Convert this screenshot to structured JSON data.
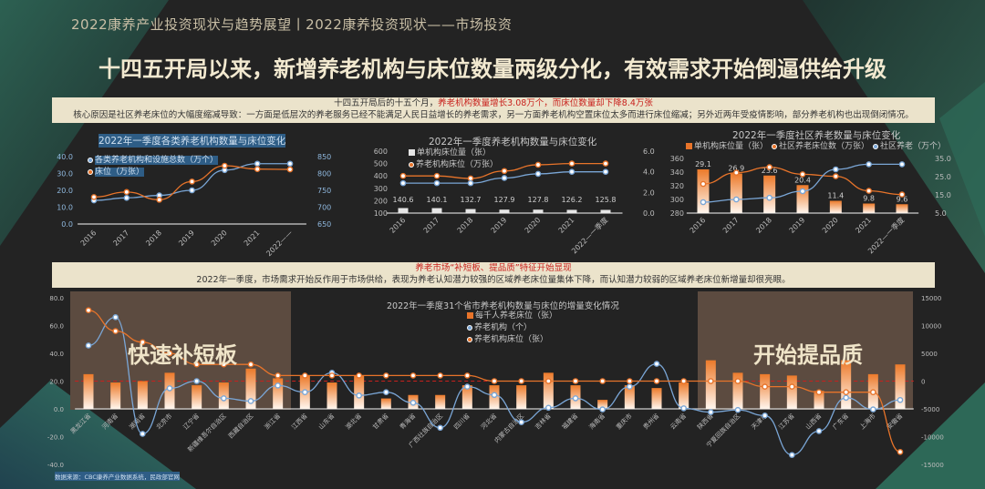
{
  "header": {
    "title": "2022康养产业投资现状与趋势展望丨2022康养投资现状——市场投资"
  },
  "headline": "十四五开局以来，新增养老机构与床位数量两级分化，有效需求开始倒逼供给升级",
  "box1": {
    "line1_prefix": "十四五开局后的十五个月，",
    "line1_highlight": "养老机构数量增长3.08万个，而床位数量却下降8.4万张",
    "line2": "核心原因是社区养老床位的大幅度缩减导致：一方面是低层次的养老服务已经不能满足人民日益增长的养老需求，另一方面养老机构空置床位太多而进行床位缩减；另外近两年受疫情影响，部分养老机构也出现倒闭情况。"
  },
  "box2": {
    "title": "养老市场“补短板、提品质”特征开始显现",
    "text": "2022年一季度，市场需求开始反作用于市场供给，表现为养老认知潜力较强的区域养老床位量集体下降，而认知潜力较弱的区域养老床位新增量却很亮眼。"
  },
  "callouts": {
    "left": "快速补短板",
    "right": "开始提品质"
  },
  "source": "数据来源：CBC康养产业数据系统，民政部官网",
  "colors": {
    "orange": "#e8742a",
    "blue": "#7aa6d6",
    "background": "#232323",
    "box": "#ebe3cb",
    "highlight_red": "#c8201c",
    "region": "#5c4b40"
  },
  "chart_data": [
    {
      "type": "line",
      "title": "2022年一季度各类养老机构数量与床位变化",
      "categories": [
        "2016",
        "2017",
        "2018",
        "2019",
        "2020",
        "2021",
        "2022——"
      ],
      "left_axis": {
        "range": [
          0,
          40
        ],
        "ticks": [
          "0.0",
          "10.0",
          "20.0",
          "30.0",
          "40.0"
        ]
      },
      "right_axis": {
        "range": [
          650,
          850
        ],
        "ticks": [
          "650",
          "700",
          "750",
          "800",
          "850"
        ]
      },
      "series": [
        {
          "name": "各类养老机构和设施总数（万个）",
          "type": "line",
          "axis": "left",
          "color": "#7aa6d6",
          "values": [
            14.0,
            15.5,
            17.0,
            20.0,
            32.0,
            35.8,
            35.8
          ]
        },
        {
          "name": "床位（万张）",
          "type": "line",
          "axis": "right",
          "color": "#e8742a",
          "values": [
            730,
            745,
            722,
            776,
            823,
            813,
            812
          ]
        }
      ],
      "grid": false,
      "legend": "top-left"
    },
    {
      "type": "bar+line",
      "title": "2022年一季度养老机构数量与床位变化",
      "categories": [
        "2016",
        "2017",
        "2018",
        "2019",
        "2020",
        "2021",
        "2022—一季度"
      ],
      "left_axis": {
        "range": [
          100,
          600
        ],
        "ticks": [
          "100",
          "200",
          "300",
          "400",
          "500",
          "600"
        ]
      },
      "right_axis": {
        "range": [
          0,
          6
        ],
        "ticks": [
          "0.0",
          "2.0",
          "4.0",
          "6.0"
        ]
      },
      "series": [
        {
          "name": "单机构床位量（张）",
          "type": "bar",
          "axis": "left",
          "color": "#e6e6e6",
          "values": [
            140.6,
            140.1,
            132.7,
            127.9,
            127.8,
            126.2,
            125.8
          ],
          "labels": [
            "140.6",
            "140.1",
            "132.7",
            "127.9",
            "127.8",
            "126.2",
            "125.8"
          ]
        },
        {
          "name": "养老机构床位（万张）",
          "type": "line",
          "axis": "left",
          "color": "#e8742a",
          "values": [
            400,
            400,
            380,
            440,
            490,
            500,
            500
          ]
        },
        {
          "type": "line",
          "axis": "right",
          "color": "#7aa6d6",
          "values": [
            2.9,
            2.9,
            2.9,
            3.4,
            3.8,
            4.0,
            4.0
          ]
        }
      ],
      "grid": false,
      "legend": "top-left"
    },
    {
      "type": "bar+line",
      "title": "2022年一季度社区养老数量与床位变化",
      "categories": [
        "2016",
        "2017",
        "2018",
        "2019",
        "2020",
        "2021",
        "2022—一季度"
      ],
      "left_axis": {
        "range": [
          280,
          360
        ],
        "ticks": [
          "280",
          "300",
          "320",
          "340",
          "360"
        ]
      },
      "right_axis": {
        "range": [
          5,
          35
        ],
        "ticks": [
          "5.0",
          "15.0",
          "25.0",
          "35.0"
        ]
      },
      "series": [
        {
          "name": "单机构床位量（张）",
          "type": "bar",
          "axis": "left",
          "color": "#e8742a",
          "values": [
            344,
            338,
            335,
            321,
            298,
            294,
            293
          ],
          "labels": [
            "29.1",
            "26.9",
            "23.6",
            "20.4",
            "11.4",
            "9.8",
            "9.6"
          ]
        },
        {
          "name": "社区养老床位数（万张）",
          "type": "line",
          "axis": "right",
          "color": "#e8742a",
          "values": [
            21.0,
            27.2,
            30.2,
            26.3,
            25.2,
            17.2,
            15.2
          ]
        },
        {
          "name": "社区养老（万个）",
          "type": "line",
          "axis": "right",
          "color": "#7aa6d6",
          "values": [
            11.0,
            12.5,
            13.4,
            17.0,
            29.0,
            31.8,
            31.8
          ]
        }
      ],
      "grid": false,
      "legend": "top"
    },
    {
      "type": "bar+line",
      "title": "2022年一季度31个省市养老机构数量与床位的增量变化情况",
      "categories": [
        "黑龙江省",
        "河南省",
        "湖南省",
        "北京市",
        "辽宁省",
        "新疆维吾尔自治区",
        "西藏自治区",
        "浙江省",
        "江西省",
        "山东省",
        "湖北省",
        "甘肃省",
        "青海省",
        "广西壮族自治区",
        "四川省",
        "河北省",
        "内蒙古自治区",
        "吉林省",
        "福建省",
        "海南省",
        "重庆市",
        "贵州省",
        "云南省",
        "陕西省",
        "宁夏回族自治区",
        "天津市",
        "江苏省",
        "山西省",
        "广东省",
        "上海市",
        "安徽省"
      ],
      "left_axis": {
        "range": [
          -40,
          80
        ],
        "ticks": [
          "-40.0",
          "-20.0",
          "0.0",
          "20.0",
          "40.0",
          "60.0",
          "80.0"
        ]
      },
      "right_axis": {
        "range": [
          -15000,
          15000
        ],
        "ticks": [
          "-15000",
          "-10000",
          "-5000",
          "0",
          "5000",
          "10000",
          "15000"
        ]
      },
      "series": [
        {
          "name": "每千人养老床位（张）",
          "type": "bar",
          "axis": "left",
          "color": "#e8742a",
          "values": [
            25,
            19,
            20,
            26,
            17,
            19,
            29,
            22,
            24,
            19,
            24,
            7.5,
            10,
            10,
            17,
            17,
            17,
            26,
            17,
            6.5,
            17,
            15,
            19,
            35,
            26,
            25,
            24,
            13,
            35,
            25,
            32
          ]
        },
        {
          "name": "养老机构（个）",
          "type": "line",
          "axis": "right",
          "color": "#7aa6d6",
          "values": [
            6400,
            11500,
            -9500,
            -1300,
            0,
            -3100,
            -3600,
            -800,
            -2000,
            1500,
            -2600,
            -2000,
            -3900,
            -8400,
            -1000,
            -2500,
            -7400,
            -4800,
            -3100,
            -5100,
            -1000,
            3100,
            -4900,
            -5600,
            -5200,
            -6200,
            -13300,
            -9000,
            -3000,
            -5100,
            -3400
          ]
        },
        {
          "name": "养老机构床位（张）",
          "type": "line",
          "axis": "left",
          "color": "#e8742a",
          "values": [
            71,
            56,
            48,
            40,
            32,
            32,
            32,
            24,
            24,
            24,
            24,
            24,
            24,
            24,
            24,
            20,
            20,
            20,
            20,
            20,
            20,
            20,
            20,
            20,
            20,
            16,
            16,
            12,
            12,
            12,
            -31
          ]
        }
      ],
      "grid": false,
      "legend": "top-right"
    }
  ]
}
